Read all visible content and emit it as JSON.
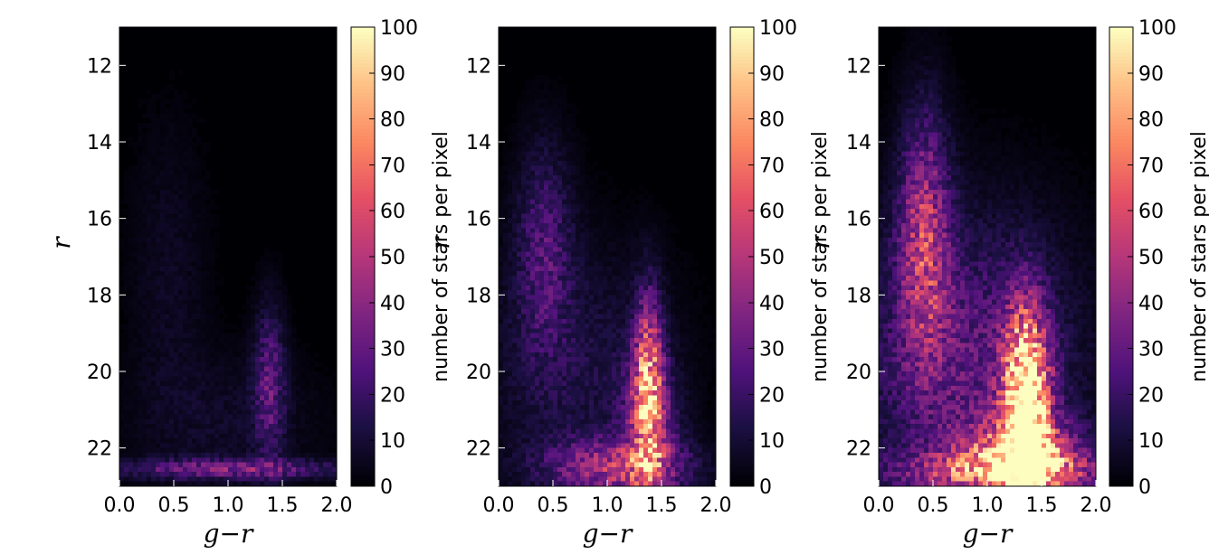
{
  "chart_data": [
    {
      "type": "heatmap",
      "panel": 1,
      "xlabel": "g−r",
      "ylabel": "r",
      "xlim": [
        0.0,
        2.0
      ],
      "ylim": [
        23.0,
        11.0
      ],
      "y_inverted": true,
      "xticks": [
        "0.0",
        "0.5",
        "1.0",
        "1.5",
        "2.0"
      ],
      "yticks": [
        "12",
        "14",
        "16",
        "18",
        "20",
        "22"
      ],
      "colorbar": {
        "label": "number of stars per pixel",
        "range": [
          0,
          100
        ],
        "ticks": [
          "0",
          "10",
          "20",
          "30",
          "40",
          "50",
          "60",
          "70",
          "80",
          "90",
          "100"
        ],
        "colormap": "magma"
      },
      "density_components": [
        {
          "x": 1.38,
          "y": 20.3,
          "sx": 0.1,
          "sy": 1.4,
          "peak": 26
        },
        {
          "x": 0.45,
          "y": 17.5,
          "sx": 0.25,
          "sy": 2.8,
          "peak": 6
        },
        {
          "x": 1.0,
          "y": 22.55,
          "sx": 0.75,
          "sy": 0.18,
          "peak": 32
        },
        {
          "x": 1.0,
          "y": 21.3,
          "sx": 0.6,
          "sy": 1.2,
          "peak": 7
        }
      ]
    },
    {
      "type": "heatmap",
      "panel": 2,
      "xlabel": "g−r",
      "ylabel": "r",
      "xlim": [
        0.0,
        2.0
      ],
      "ylim": [
        23.0,
        11.0
      ],
      "y_inverted": true,
      "xticks": [
        "0.0",
        "0.5",
        "1.0",
        "1.5",
        "2.0"
      ],
      "yticks": [
        "12",
        "14",
        "16",
        "18",
        "20",
        "22"
      ],
      "colorbar": {
        "label": "number of stars per pixel",
        "range": [
          0,
          100
        ],
        "ticks": [
          "0",
          "10",
          "20",
          "30",
          "40",
          "50",
          "60",
          "70",
          "80",
          "90",
          "100"
        ],
        "colormap": "magma"
      },
      "density_components": [
        {
          "x": 1.38,
          "y": 20.5,
          "sx": 0.09,
          "sy": 1.6,
          "peak": 72
        },
        {
          "x": 1.38,
          "y": 21.5,
          "sx": 0.2,
          "sy": 1.3,
          "peak": 25
        },
        {
          "x": 0.42,
          "y": 16.8,
          "sx": 0.18,
          "sy": 1.9,
          "peak": 22
        },
        {
          "x": 1.1,
          "y": 22.5,
          "sx": 0.45,
          "sy": 0.5,
          "peak": 42
        },
        {
          "x": 0.7,
          "y": 20.0,
          "sx": 0.6,
          "sy": 2.3,
          "peak": 12
        }
      ]
    },
    {
      "type": "heatmap",
      "panel": 3,
      "xlabel": "g−r",
      "ylabel": "r",
      "xlim": [
        0.0,
        2.0
      ],
      "ylim": [
        23.0,
        11.0
      ],
      "y_inverted": true,
      "xticks": [
        "0.0",
        "0.5",
        "1.0",
        "1.5",
        "2.0"
      ],
      "yticks": [
        "12",
        "14",
        "16",
        "18",
        "20",
        "22"
      ],
      "colorbar": {
        "label": "number of stars per pixel",
        "range": [
          0,
          100
        ],
        "ticks": [
          "0",
          "10",
          "20",
          "30",
          "40",
          "50",
          "60",
          "70",
          "80",
          "90",
          "100"
        ],
        "colormap": "magma"
      },
      "density_components": [
        {
          "x": 1.36,
          "y": 21.0,
          "sx": 0.14,
          "sy": 1.7,
          "peak": 120
        },
        {
          "x": 1.3,
          "y": 22.3,
          "sx": 0.38,
          "sy": 0.7,
          "peak": 70
        },
        {
          "x": 0.42,
          "y": 16.5,
          "sx": 0.16,
          "sy": 2.2,
          "peak": 45
        },
        {
          "x": 0.8,
          "y": 19.8,
          "sx": 0.7,
          "sy": 2.6,
          "peak": 28
        },
        {
          "x": 1.1,
          "y": 22.6,
          "sx": 0.7,
          "sy": 0.35,
          "peak": 40
        }
      ]
    }
  ],
  "labels": {
    "xlabel": "g−r",
    "ylabel": "r",
    "colorbar_label": "number of stars per pixel"
  }
}
